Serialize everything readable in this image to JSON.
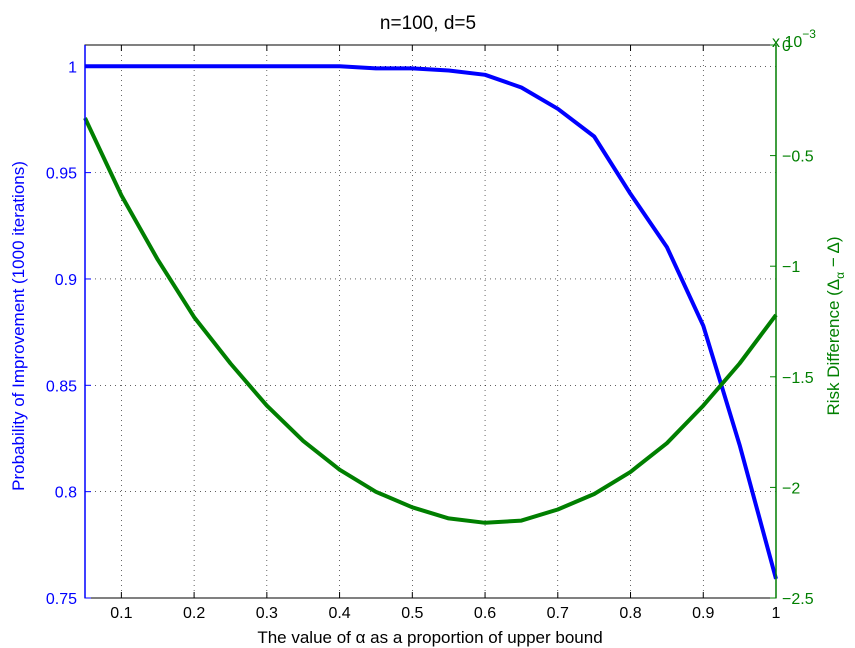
{
  "chart_data": {
    "type": "line",
    "title": "n=100, d=5",
    "xlabel": "The value of α as a proportion of upper bound",
    "ylabel_left": "Probability of Improvement (1000 iterations)",
    "ylabel_right": "Risk Difference (Δ",
    "ylabel_right_sub": "α",
    "ylabel_right_tail": " − Δ)",
    "right_axis_exponent_base": "x 10",
    "right_axis_exponent_power": "−3",
    "xlim": [
      0.05,
      1
    ],
    "ylim_left": [
      0.75,
      1.01
    ],
    "ylim_right": [
      -2.5,
      0
    ],
    "grid": true,
    "x_ticks": [
      "0.1",
      "0.2",
      "0.3",
      "0.4",
      "0.5",
      "0.6",
      "0.7",
      "0.8",
      "0.9",
      "1"
    ],
    "y_left_ticks": [
      "0.75",
      "0.8",
      "0.85",
      "0.9",
      "0.95",
      "1"
    ],
    "y_right_ticks": [
      "−2.5",
      "−2",
      "−1.5",
      "−1",
      "−0.5",
      "0"
    ],
    "x": [
      0.05,
      0.1,
      0.15,
      0.2,
      0.25,
      0.3,
      0.35,
      0.4,
      0.45,
      0.5,
      0.55,
      0.6,
      0.65,
      0.7,
      0.75,
      0.8,
      0.85,
      0.9,
      0.95,
      1.0
    ],
    "series": [
      {
        "axis": "left",
        "color": "#0000ff",
        "values": [
          1.0,
          1.0,
          1.0,
          1.0,
          1.0,
          1.0,
          1.0,
          1.0,
          0.999,
          0.999,
          0.998,
          0.996,
          0.99,
          0.98,
          0.967,
          0.94,
          0.915,
          0.878,
          0.822,
          0.759
        ]
      },
      {
        "axis": "right",
        "color": "#007f00",
        "values": [
          -0.33,
          -0.68,
          -0.97,
          -1.23,
          -1.44,
          -1.63,
          -1.79,
          -1.92,
          -2.02,
          -2.09,
          -2.14,
          -2.16,
          -2.15,
          -2.1,
          -2.03,
          -1.93,
          -1.8,
          -1.63,
          -1.44,
          -1.22
        ]
      }
    ]
  }
}
